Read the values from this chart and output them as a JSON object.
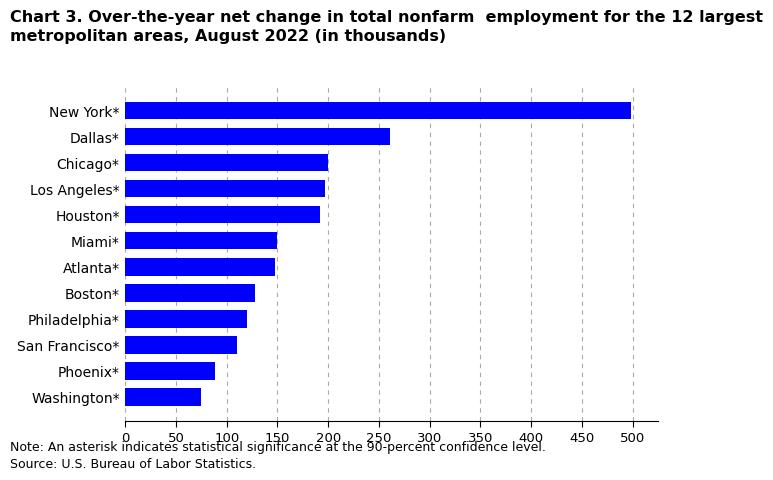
{
  "title_line1": "Chart 3. Over-the-year net change in total nonfarm  employment for the 12 largest",
  "title_line2": "metropolitan areas, August 2022 (in thousands)",
  "categories": [
    "Washington*",
    "Phoenix*",
    "San Francisco*",
    "Philadelphia*",
    "Boston*",
    "Atlanta*",
    "Miami*",
    "Houston*",
    "Los Angeles*",
    "Chicago*",
    "Dallas*",
    "New York*"
  ],
  "values": [
    75,
    88,
    110,
    120,
    128,
    148,
    150,
    192,
    197,
    200,
    261,
    498
  ],
  "bar_color": "#0000FF",
  "xlim": [
    0,
    525
  ],
  "xticks": [
    0,
    50,
    100,
    150,
    200,
    250,
    300,
    350,
    400,
    450,
    500
  ],
  "note": "Note: An asterisk indicates statistical significance at the 90-percent confidence level.",
  "source": "Source: U.S. Bureau of Labor Statistics.",
  "background_color": "#ffffff",
  "grid_color": "#aaaaaa",
  "title_fontsize": 11.5,
  "label_fontsize": 10,
  "tick_fontsize": 9.5,
  "note_fontsize": 9
}
